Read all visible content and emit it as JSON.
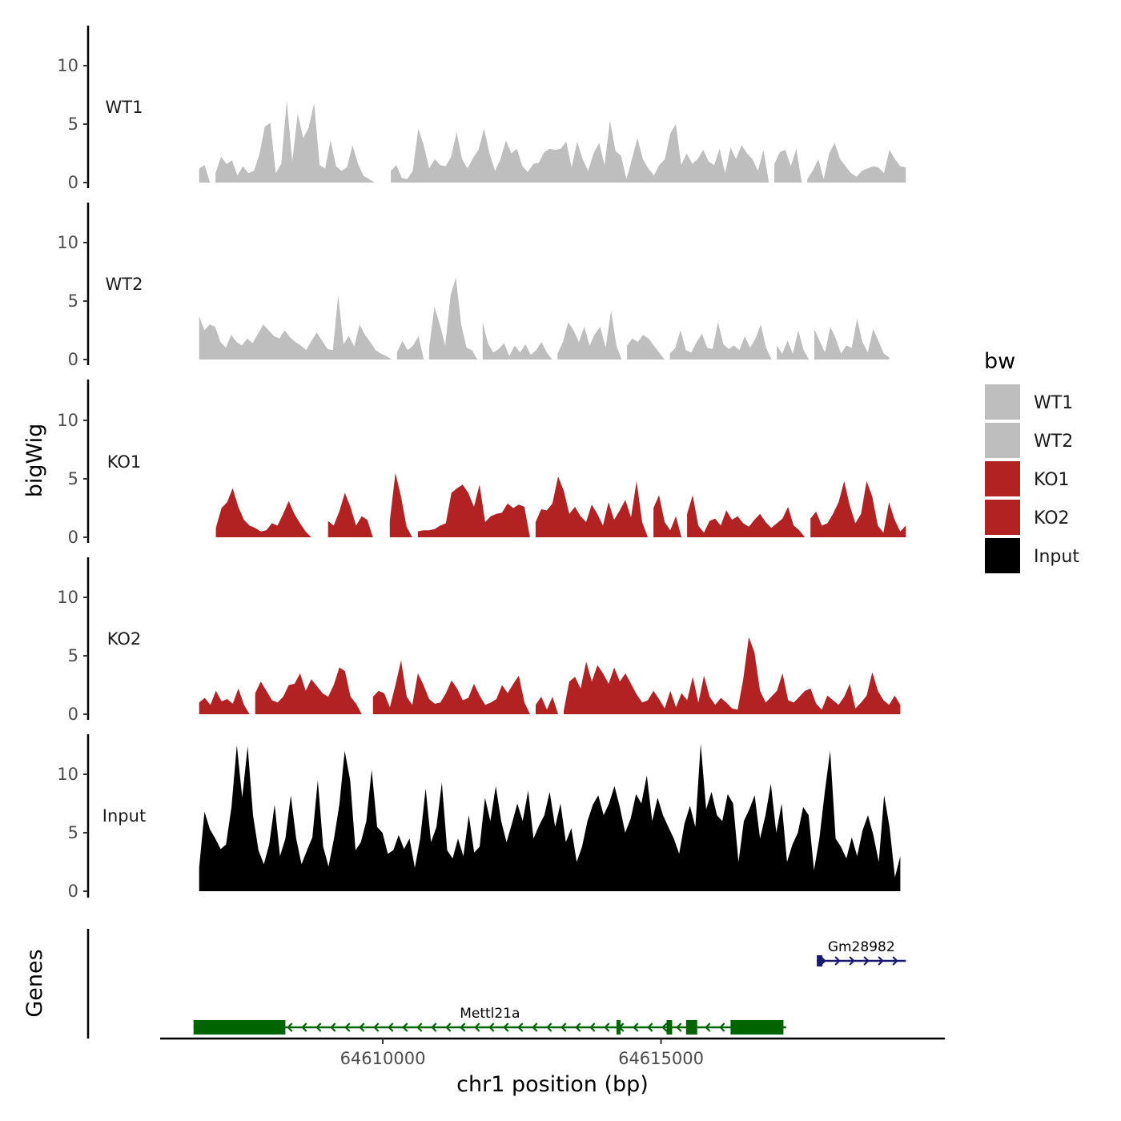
{
  "chart_data": {
    "type": "area",
    "ylabel": "bigWig",
    "genes_label": "Genes",
    "xlabel": "chr1 position (bp)",
    "xlim": [
      64606000,
      64620100
    ],
    "x_ticks": [
      64610000,
      64615000
    ],
    "x_tick_labels": [
      "64610000",
      "64615000"
    ],
    "ylim": [
      0,
      13.5
    ],
    "y_ticks": [
      0,
      5,
      10
    ],
    "y_tick_labels": [
      "0",
      "5",
      "10"
    ],
    "legend": {
      "title": "bw",
      "entries": [
        {
          "label": "WT1",
          "color": "#bebebe"
        },
        {
          "label": "WT2",
          "color": "#bebebe"
        },
        {
          "label": "KO1",
          "color": "#b22222"
        },
        {
          "label": "KO2",
          "color": "#b22222"
        },
        {
          "label": "Input",
          "color": "#000000"
        }
      ]
    },
    "series": [
      {
        "name": "WT1",
        "color": "#bebebe",
        "x_start": 64606700,
        "x_end": 64619400,
        "values": [
          1.2,
          1.5,
          0,
          0.8,
          2.2,
          1.6,
          1.9,
          0.6,
          1.4,
          0.8,
          1.0,
          2.4,
          4.8,
          5.1,
          0.8,
          1.6,
          7.0,
          1.8,
          5.9,
          3.8,
          4.7,
          6.8,
          1.5,
          1.2,
          3.6,
          1.4,
          1.0,
          1.3,
          3.2,
          1.6,
          0.6,
          0.3,
          0,
          0,
          0,
          1.0,
          1.5,
          0.4,
          0.3,
          1.0,
          4.6,
          3.2,
          1.2,
          2.0,
          1.5,
          1.4,
          2.2,
          4.3,
          2.0,
          1.2,
          2.1,
          2.8,
          4.6,
          2.5,
          1.0,
          2.0,
          3.6,
          2.5,
          2.9,
          1.4,
          0.9,
          1.6,
          1.7,
          2.6,
          2.9,
          2.8,
          2.9,
          3.5,
          1.3,
          3.5,
          2.0,
          1.0,
          2.5,
          3.4,
          1.5,
          5.3,
          2.7,
          2.3,
          0.3,
          2.0,
          3.8,
          2.0,
          1.2,
          0.6,
          1.5,
          2.0,
          4.2,
          5.0,
          1.5,
          2.5,
          1.6,
          2.0,
          2.8,
          1.8,
          1.5,
          2.9,
          0.8,
          3.0,
          2.0,
          3.2,
          2.5,
          2.0,
          1.0,
          2.8,
          0,
          1.6,
          2.6,
          2.8,
          1.4,
          2.9,
          0,
          0.3,
          1.0,
          2.0,
          0.3,
          2.5,
          3.4,
          2.0,
          1.4,
          0.8,
          0.5,
          1.0,
          1.2,
          1.4,
          1.3,
          0.8,
          2.8,
          2.0,
          1.4,
          1.3
        ]
      },
      {
        "name": "WT2",
        "color": "#bebebe",
        "x_start": 64606700,
        "x_end": 64619100,
        "values": [
          3.7,
          2.5,
          3.0,
          2.8,
          1.5,
          1.0,
          2.1,
          1.5,
          1.2,
          1.8,
          1.4,
          2.2,
          3.0,
          2.5,
          2.0,
          1.8,
          2.5,
          1.9,
          1.5,
          1.2,
          0.8,
          1.6,
          2.3,
          1.6,
          0.9,
          0.8,
          5.5,
          1.3,
          2.0,
          1.1,
          3.0,
          2.1,
          1.5,
          0.8,
          0.5,
          0.3,
          0,
          0.6,
          1.6,
          0.8,
          1.2,
          2.0,
          0,
          1.0,
          4.5,
          3.0,
          1.2,
          5.5,
          7.0,
          3.0,
          1.0,
          0.8,
          0,
          3.2,
          1.4,
          0.6,
          0.9,
          1.4,
          0.3,
          1.2,
          0.6,
          1.3,
          0.4,
          0.8,
          1.5,
          0.6,
          0,
          0.5,
          1.5,
          3.2,
          2.5,
          1.5,
          2.8,
          1.2,
          2.2,
          2.8,
          1.0,
          4.2,
          1.2,
          0,
          1.2,
          1.8,
          1.5,
          2.1,
          1.8,
          1.2,
          0.6,
          0,
          0.5,
          1.0,
          2.5,
          0.8,
          0.6,
          1.5,
          2.2,
          1.0,
          0.9,
          3.2,
          1.3,
          0.9,
          1.2,
          0.8,
          2.0,
          1.0,
          1.8,
          3.0,
          1.0,
          0,
          1.2,
          0.5,
          1.6,
          0.5,
          2.5,
          0.8,
          0,
          2.6,
          1.6,
          0.6,
          2.8,
          1.8,
          0.5,
          1.2,
          1.0,
          3.5,
          1.5,
          0.6,
          2.6,
          1.6,
          0.5,
          0.2
        ]
      },
      {
        "name": "KO1",
        "color": "#b22222",
        "x_start": 64606900,
        "x_end": 64619400,
        "values": [
          0,
          0.8,
          2.5,
          3.0,
          4.2,
          2.6,
          1.5,
          1.0,
          0.8,
          0.5,
          0.6,
          1.2,
          1.0,
          2.0,
          3.1,
          2.0,
          1.2,
          0.5,
          0,
          0,
          0,
          1.4,
          1.0,
          2.2,
          3.8,
          2.6,
          1.0,
          1.8,
          1.5,
          0,
          0,
          0,
          1.4,
          5.5,
          3.5,
          0.9,
          0,
          0.5,
          0.6,
          0.6,
          0.7,
          1.0,
          1.2,
          3.8,
          4.2,
          4.5,
          3.8,
          2.6,
          4.5,
          1.3,
          1.8,
          2.0,
          2.1,
          2.9,
          2.5,
          2.8,
          2.6,
          0,
          1.3,
          2.4,
          2.3,
          2.9,
          5.2,
          4.0,
          2.0,
          2.6,
          1.8,
          1.3,
          2.8,
          2.0,
          1.0,
          3.0,
          1.5,
          2.3,
          3.2,
          1.7,
          4.8,
          1.3,
          0,
          2.5,
          3.6,
          1.3,
          0.6,
          1.8,
          0,
          2.0,
          3.6,
          1.0,
          0.4,
          1.4,
          1.6,
          1.0,
          2.3,
          1.5,
          1.8,
          1.2,
          0.9,
          1.5,
          2.0,
          1.3,
          0.8,
          1.2,
          1.6,
          2.6,
          1.0,
          0.6,
          0,
          1.6,
          2.2,
          1.0,
          1.2,
          2.0,
          3.0,
          4.8,
          2.7,
          1.2,
          2.0,
          4.8,
          3.5,
          1.0,
          0.4,
          3.0,
          1.5,
          0.5,
          1.0
        ]
      },
      {
        "name": "KO2",
        "color": "#b22222",
        "x_start": 64606700,
        "x_end": 64619300,
        "values": [
          1.0,
          1.4,
          0.8,
          2.0,
          1.1,
          1.3,
          0.9,
          2.2,
          0.8,
          0,
          1.8,
          2.8,
          2.0,
          1.2,
          1.0,
          1.5,
          2.5,
          2.6,
          3.5,
          2.0,
          3.0,
          2.4,
          1.8,
          1.5,
          2.5,
          4.0,
          3.7,
          1.5,
          0.9,
          0,
          0,
          1.5,
          2.0,
          1.8,
          0.6,
          2.5,
          4.6,
          1.5,
          0.8,
          3.5,
          2.5,
          1.3,
          0.9,
          1.0,
          1.8,
          2.9,
          2.2,
          1.2,
          1.4,
          2.6,
          1.6,
          0.8,
          1.0,
          1.3,
          2.5,
          1.8,
          2.6,
          3.3,
          1.0,
          0,
          0.8,
          1.5,
          0.4,
          1.5,
          0,
          0.3,
          2.8,
          3.2,
          2.2,
          4.5,
          2.8,
          4.2,
          3.5,
          2.6,
          4.0,
          2.8,
          3.5,
          2.6,
          1.7,
          1.0,
          1.2,
          2.0,
          1.3,
          0.5,
          2.0,
          0.6,
          1.8,
          1.2,
          3.2,
          1.0,
          3.3,
          1.5,
          0.8,
          1.4,
          1.0,
          0.5,
          0.4,
          3.0,
          6.6,
          5.3,
          2.0,
          1.0,
          1.5,
          2.0,
          3.5,
          1.2,
          1.0,
          1.5,
          2.0,
          2.2,
          0.9,
          0.4,
          1.6,
          1.2,
          0.8,
          1.5,
          2.6,
          0.5,
          1.0,
          1.6,
          3.6,
          2.0,
          1.2,
          0.8,
          1.6,
          0.8
        ]
      },
      {
        "name": "Input",
        "color": "#000000",
        "x_start": 64606700,
        "x_end": 64619300,
        "values": [
          2.0,
          6.8,
          5.3,
          4.5,
          3.6,
          4.0,
          7.2,
          12.5,
          8.0,
          12.4,
          6.5,
          3.5,
          2.3,
          4.0,
          7.4,
          3.0,
          4.5,
          8.2,
          4.5,
          2.3,
          3.5,
          4.6,
          9.5,
          3.8,
          2.1,
          4.5,
          7.4,
          12.0,
          9.5,
          3.5,
          4.2,
          6.0,
          10.4,
          5.5,
          5.0,
          3.2,
          3.5,
          4.8,
          3.6,
          4.5,
          2.0,
          4.5,
          8.8,
          4.2,
          5.5,
          9.3,
          3.5,
          2.8,
          4.5,
          3.0,
          6.5,
          3.3,
          3.8,
          8.0,
          6.0,
          9.0,
          6.0,
          4.2,
          5.8,
          7.5,
          6.0,
          8.6,
          4.5,
          5.6,
          6.5,
          8.5,
          5.5,
          7.5,
          4.2,
          5.4,
          2.5,
          3.8,
          6.0,
          7.4,
          8.2,
          6.5,
          7.5,
          9.0,
          7.2,
          5.0,
          6.2,
          8.3,
          7.5,
          9.9,
          6.0,
          8.0,
          6.5,
          5.5,
          4.5,
          3.2,
          5.8,
          7.3,
          5.5,
          12.6,
          7.0,
          8.5,
          6.5,
          6.0,
          8.3,
          7.5,
          2.5,
          6.0,
          7.0,
          8.2,
          4.5,
          6.5,
          9.2,
          5.0,
          7.5,
          2.5,
          4.0,
          5.0,
          7.2,
          6.5,
          1.8,
          4.5,
          8.5,
          12.0,
          4.5,
          3.8,
          2.8,
          4.6,
          3.0,
          5.2,
          6.5,
          4.8,
          2.5,
          8.2,
          5.5,
          1.2,
          3.0
        ]
      }
    ],
    "genes": [
      {
        "name": "Gm28982",
        "strand": "+",
        "color": "#191970",
        "start": 64617800,
        "end": 64619400,
        "exons": [
          [
            64617800,
            64617900
          ]
        ]
      },
      {
        "name": "Mettl21a",
        "strand": "-",
        "color": "#006400",
        "start": 64606600,
        "end": 64617250,
        "exons": [
          [
            64606600,
            64608250
          ],
          [
            64614200,
            64614250
          ],
          [
            64615100,
            64615200
          ],
          [
            64615450,
            64615650
          ],
          [
            64616250,
            64617200
          ]
        ]
      }
    ]
  }
}
